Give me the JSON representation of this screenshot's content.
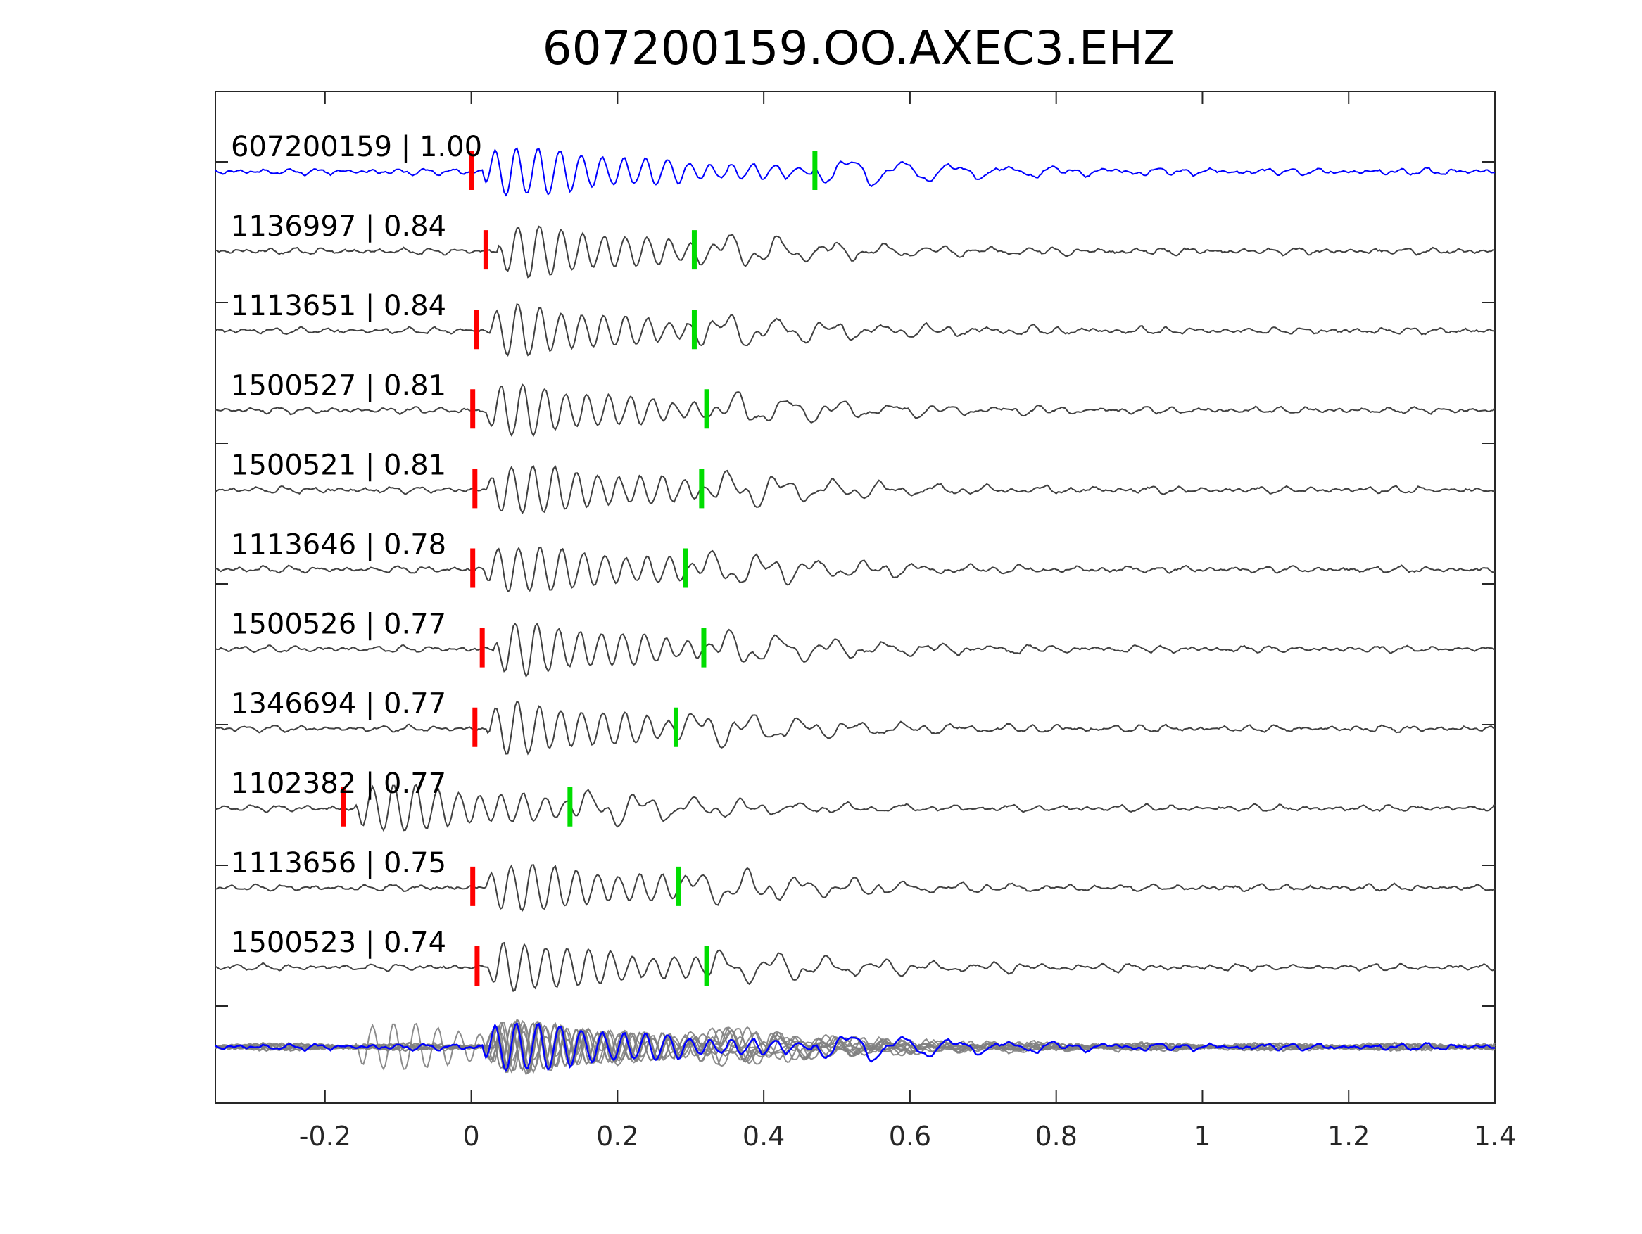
{
  "chart_data": {
    "type": "line",
    "title": "607200159.OO.AXEC3.EHZ",
    "xlabel": "",
    "ylabel": "",
    "xlim": [
      -0.35,
      1.4
    ],
    "x_ticks": [
      -0.2,
      0,
      0.2,
      0.4,
      0.6,
      0.8,
      1,
      1.2,
      1.4
    ],
    "x_tick_labels": [
      "-0.2",
      "0",
      "0.2",
      "0.4",
      "0.6",
      "0.8",
      "1",
      "1.2",
      "1.4"
    ],
    "grid": false,
    "colors": {
      "template_trace": "#0000ff",
      "match_trace": "#404040",
      "stack_trace": "#808080",
      "p_pick": "#ff0000",
      "s_pick": "#00dd00",
      "axis": "#262626"
    },
    "traces": [
      {
        "label": "607200159 | 1.00",
        "id": "607200159",
        "cc": 1.0,
        "p_pick": 0.0,
        "s_pick": 0.47,
        "template": true
      },
      {
        "label": "1136997 | 0.84",
        "id": "1136997",
        "cc": 0.84,
        "p_pick": 0.02,
        "s_pick": 0.305
      },
      {
        "label": "1113651 | 0.84",
        "id": "1113651",
        "cc": 0.84,
        "p_pick": 0.007,
        "s_pick": 0.305
      },
      {
        "label": "1500527 | 0.81",
        "id": "1500527",
        "cc": 0.81,
        "p_pick": 0.002,
        "s_pick": 0.322
      },
      {
        "label": "1500521 | 0.81",
        "id": "1500521",
        "cc": 0.81,
        "p_pick": 0.005,
        "s_pick": 0.315
      },
      {
        "label": "1113646 | 0.78",
        "id": "1113646",
        "cc": 0.78,
        "p_pick": 0.002,
        "s_pick": 0.293
      },
      {
        "label": "1500526 | 0.77",
        "id": "1500526",
        "cc": 0.77,
        "p_pick": 0.015,
        "s_pick": 0.318
      },
      {
        "label": "1346694 | 0.77",
        "id": "1346694",
        "cc": 0.77,
        "p_pick": 0.005,
        "s_pick": 0.28
      },
      {
        "label": "1102382 | 0.77",
        "id": "1102382",
        "cc": 0.77,
        "p_pick": -0.175,
        "s_pick": 0.135
      },
      {
        "label": "1113656 | 0.75",
        "id": "1113656",
        "cc": 0.75,
        "p_pick": 0.002,
        "s_pick": 0.283
      },
      {
        "label": "1500523 | 0.74",
        "id": "1500523",
        "cc": 0.74,
        "p_pick": 0.008,
        "s_pick": 0.322
      }
    ],
    "stack": {
      "description_visible": false,
      "overlay_of_all_traces": true
    }
  }
}
